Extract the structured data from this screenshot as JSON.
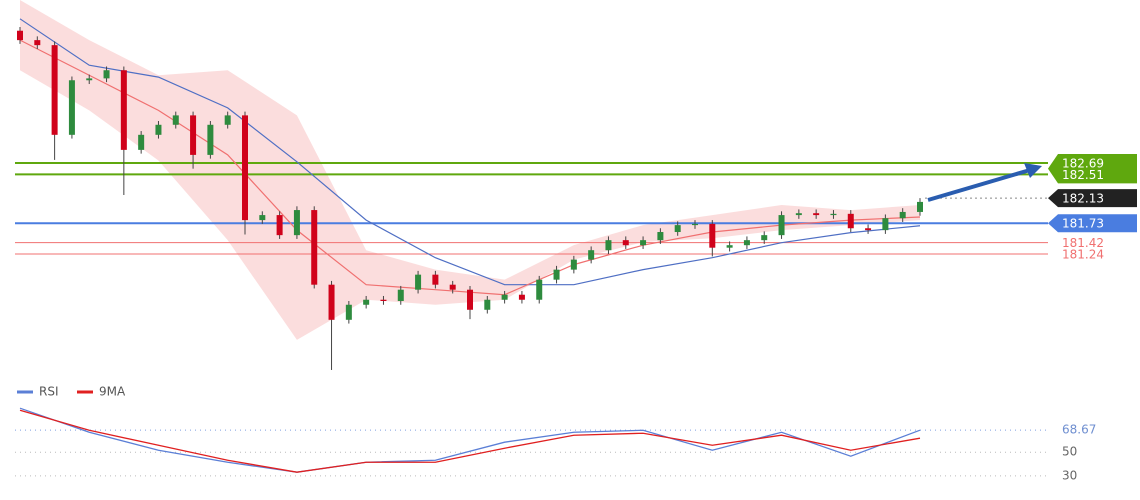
{
  "chart_data": [
    {
      "type": "candlestick",
      "open": [
        184.8,
        184.65,
        184.57,
        183.14,
        184.01,
        184.04,
        184.17,
        182.9,
        183.14,
        183.3,
        183.45,
        182.82,
        183.3,
        183.45,
        181.78,
        181.86,
        181.54,
        181.94,
        180.75,
        180.19,
        180.43,
        180.51,
        180.49,
        180.67,
        180.91,
        180.75,
        180.67,
        180.35,
        180.51,
        180.59,
        180.51,
        180.83,
        180.99,
        181.15,
        181.3,
        181.46,
        181.38,
        181.46,
        181.59,
        181.7,
        181.72,
        181.34,
        181.38,
        181.46,
        181.54,
        181.86,
        181.89,
        181.86,
        181.88,
        181.65,
        181.62,
        181.81,
        181.91
      ],
      "high": [
        184.86,
        184.71,
        184.63,
        184.07,
        184.1,
        184.23,
        184.23,
        183.2,
        183.36,
        183.51,
        183.51,
        183.36,
        183.51,
        183.51,
        181.92,
        181.92,
        182.0,
        182.0,
        180.81,
        180.49,
        180.57,
        180.57,
        180.73,
        180.97,
        180.97,
        180.81,
        180.73,
        180.57,
        180.65,
        180.65,
        180.89,
        181.05,
        181.21,
        181.36,
        181.52,
        181.52,
        181.52,
        181.65,
        181.76,
        181.78,
        181.78,
        181.44,
        181.52,
        181.6,
        181.92,
        181.95,
        181.95,
        181.94,
        181.94,
        181.71,
        181.87,
        181.97,
        182.13
      ],
      "low": [
        184.59,
        184.51,
        182.74,
        183.08,
        183.95,
        183.98,
        182.18,
        182.84,
        183.08,
        183.24,
        182.6,
        182.76,
        183.24,
        181.55,
        181.72,
        181.48,
        181.48,
        180.69,
        179.39,
        180.13,
        180.37,
        180.43,
        180.43,
        180.61,
        180.69,
        180.61,
        180.2,
        180.29,
        180.45,
        180.45,
        180.45,
        180.77,
        180.93,
        181.09,
        181.24,
        181.32,
        181.32,
        181.4,
        181.53,
        181.64,
        181.2,
        181.28,
        181.32,
        181.4,
        181.48,
        181.8,
        181.8,
        181.8,
        181.59,
        181.56,
        181.56,
        181.75,
        181.85
      ],
      "close": [
        184.65,
        184.57,
        183.14,
        184.01,
        184.04,
        184.17,
        182.9,
        183.14,
        183.3,
        183.45,
        182.82,
        183.3,
        183.45,
        181.78,
        181.86,
        181.54,
        181.94,
        180.75,
        180.19,
        180.43,
        180.51,
        180.49,
        180.67,
        180.91,
        180.75,
        180.67,
        180.35,
        180.51,
        180.59,
        180.51,
        180.83,
        180.99,
        181.15,
        181.3,
        181.46,
        181.38,
        181.46,
        181.59,
        181.7,
        181.72,
        181.34,
        181.38,
        181.46,
        181.54,
        181.86,
        181.89,
        181.86,
        181.88,
        181.65,
        181.62,
        181.81,
        181.91,
        182.07
      ],
      "up_color": "#2e8b3e",
      "down_color": "#d0021b",
      "ylim": [
        179.23,
        185.29
      ],
      "overlay_x": [
        0,
        4,
        8,
        12,
        16,
        20,
        24,
        28,
        32,
        36,
        40,
        44,
        48,
        52
      ],
      "ma_slow": [
        184.99,
        184.25,
        184.06,
        183.57,
        182.71,
        181.78,
        181.18,
        180.75,
        180.75,
        180.99,
        181.18,
        181.42,
        181.58,
        181.69
      ],
      "ma_slow_color": "#4f6fc4",
      "ma_fast": [
        184.65,
        184.09,
        183.53,
        182.82,
        181.62,
        180.75,
        180.67,
        180.59,
        181.07,
        181.38,
        181.59,
        181.7,
        181.78,
        181.83
      ],
      "ma_fast_color": "#f07070",
      "band_upper": [
        185.29,
        184.65,
        184.09,
        184.17,
        183.45,
        181.3,
        180.99,
        180.83,
        181.38,
        181.7,
        181.86,
        182.02,
        181.94,
        182.02
      ],
      "band_lower": [
        184.17,
        183.53,
        182.73,
        181.46,
        179.87,
        180.51,
        180.43,
        180.51,
        181.15,
        181.43,
        181.49,
        181.62,
        181.7,
        181.78
      ],
      "band_color": "#f9cfcf",
      "levels": [
        {
          "value": 182.69,
          "color": "#5fa80e",
          "line": "solid",
          "tag": "box"
        },
        {
          "value": 182.51,
          "color": "#5fa80e",
          "line": "solid",
          "tag": "box"
        },
        {
          "value": 182.13,
          "color": "#222222",
          "line": "dotted",
          "tag": "box"
        },
        {
          "value": 181.73,
          "color": "#4a7de0",
          "line": "solid",
          "tag": "box"
        },
        {
          "value": 181.42,
          "color": "#f07070",
          "line": "solid",
          "tag": "text"
        },
        {
          "value": 181.24,
          "color": "#f07070",
          "line": "solid",
          "tag": "text"
        }
      ]
    },
    {
      "type": "line",
      "x": [
        0,
        4,
        8,
        12,
        16,
        20,
        24,
        28,
        32,
        36,
        40,
        44,
        48,
        52
      ],
      "series": [
        {
          "name": "RSI",
          "color": "#5b7fd6",
          "values": [
            87.3,
            66.9,
            51.7,
            41.5,
            33.1,
            41.5,
            43.2,
            58.5,
            66.9,
            68.6,
            51.7,
            66.9,
            46.6,
            68.67
          ]
        },
        {
          "name": "9MA",
          "color": "#e02020",
          "values": [
            85.6,
            68.6,
            55.9,
            43.2,
            33.1,
            41.5,
            41.5,
            53.4,
            64.4,
            66.1,
            55.9,
            64.4,
            51.7,
            61.9
          ]
        }
      ],
      "ylim": [
        18,
        90
      ],
      "yticks": [
        30,
        50,
        68.67
      ]
    }
  ]
}
